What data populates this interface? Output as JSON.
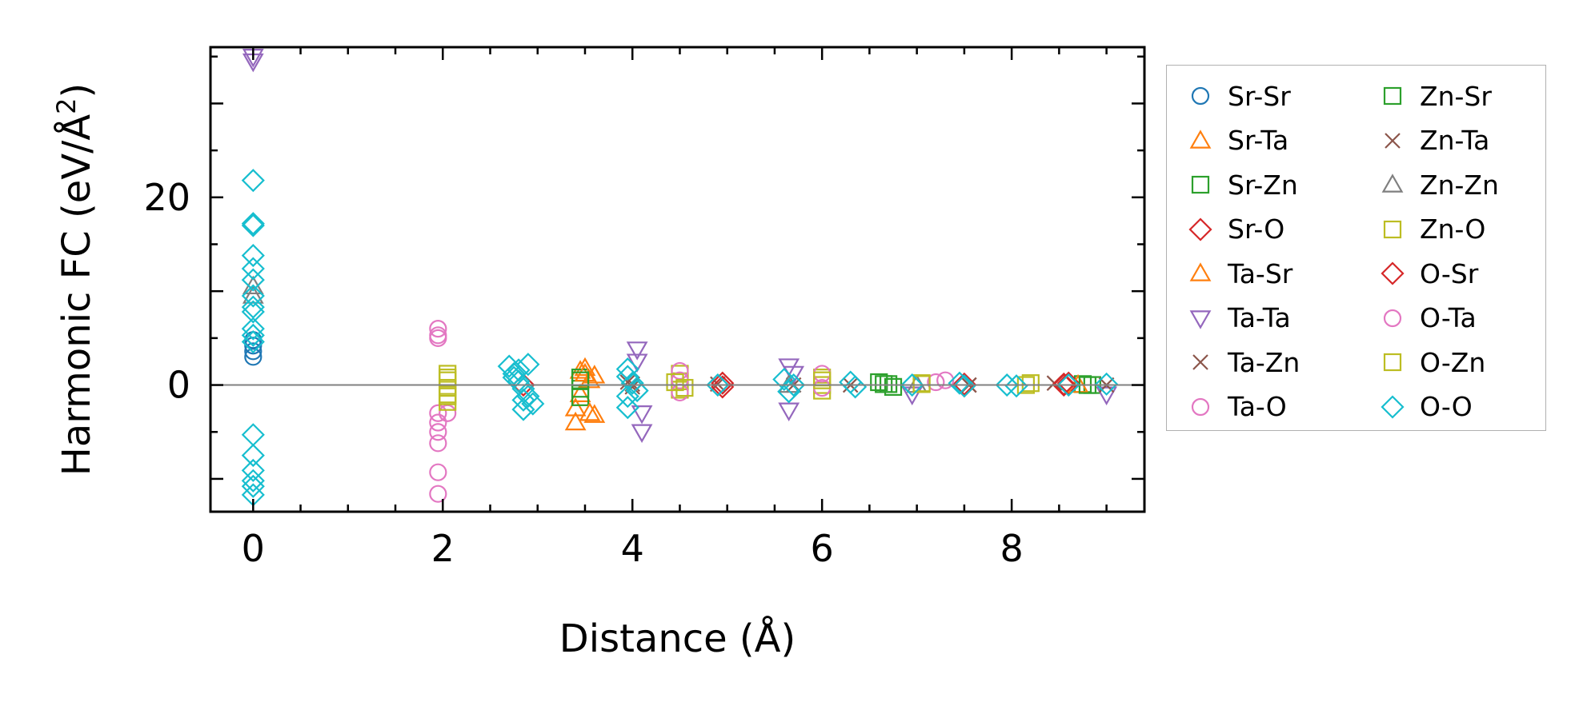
{
  "chart_data": {
    "type": "scatter",
    "title": "",
    "xlabel": "Distance (Å)",
    "ylabel_main": "Harmonic FC (eV/Å",
    "ylabel_sup": "2",
    "ylabel_close": ")",
    "xlim": [
      -0.45,
      9.4
    ],
    "ylim": [
      -13.5,
      36
    ],
    "xticks": [
      0,
      2,
      4,
      6,
      8
    ],
    "yticks": [
      0,
      20
    ],
    "grid": false,
    "legend_position": "outside-right",
    "reference_line_y": 0,
    "series": [
      {
        "name": "Sr-Sr",
        "marker": "circle",
        "color": "#1f77b4",
        "x": [
          0,
          0,
          0,
          0
        ],
        "y": [
          3,
          3.6,
          4.2,
          4.8
        ]
      },
      {
        "name": "Sr-Ta",
        "marker": "triangle-up",
        "color": "#ff7f0e",
        "x": [
          3.4,
          3.4,
          3.45,
          3.45,
          3.5,
          3.55
        ],
        "y": [
          -4,
          -2.5,
          1.5,
          -1,
          1.8,
          0.5
        ]
      },
      {
        "name": "Sr-Zn",
        "marker": "square",
        "color": "#2ca02c",
        "x": [
          3.45,
          3.45,
          3.45,
          6.6,
          6.7,
          8.75,
          8.85
        ],
        "y": [
          0.8,
          -0.4,
          -1.3,
          0.3,
          0.1,
          0.1,
          0
        ]
      },
      {
        "name": "Sr-O",
        "marker": "diamond",
        "color": "#d62728",
        "x": [
          2.85,
          4.95,
          7.5,
          8.55,
          8.6
        ],
        "y": [
          0,
          0.2,
          0.1,
          0,
          0.2
        ]
      },
      {
        "name": "Ta-Sr",
        "marker": "triangle-up",
        "color": "#ff7f0e",
        "x": [
          3.5,
          3.55,
          3.6,
          3.6,
          8.7
        ],
        "y": [
          1.2,
          -3,
          -3.2,
          1,
          0
        ]
      },
      {
        "name": "Ta-Ta",
        "marker": "triangle-down",
        "color": "#9467bd",
        "x": [
          0,
          0,
          4.05,
          4.05,
          4.1,
          4.1,
          5.65,
          5.65,
          5.7,
          6.95,
          9
        ],
        "y": [
          34.5,
          35,
          3.8,
          2.5,
          -5,
          -3,
          2,
          -2.7,
          1.2,
          -1,
          -1
        ]
      },
      {
        "name": "Ta-Zn",
        "marker": "x",
        "color": "#8c564b",
        "x": [
          3.95,
          4.0,
          4.9,
          6.3,
          7.55,
          8.45,
          9
        ],
        "y": [
          0.3,
          -0.2,
          0.1,
          0,
          0,
          0.2,
          0
        ]
      },
      {
        "name": "Ta-O",
        "marker": "circle",
        "color": "#e377c2",
        "x": [
          1.95,
          1.95,
          1.95,
          1.95,
          1.95,
          1.95,
          1.95,
          2.05,
          1.95,
          1.95
        ],
        "y": [
          5,
          6,
          5.3,
          -3,
          -4,
          -5,
          -6.2,
          -3,
          -9.3,
          -11.6
        ]
      },
      {
        "name": "Zn-Sr",
        "marker": "square",
        "color": "#2ca02c",
        "x": [
          3.45,
          6.65,
          6.75,
          8.8
        ],
        "y": [
          0.5,
          0.1,
          -0.2,
          0
        ]
      },
      {
        "name": "Zn-Ta",
        "marker": "x",
        "color": "#8c564b",
        "x": [
          4.0,
          5.7,
          7.55
        ],
        "y": [
          0.1,
          0,
          0
        ]
      },
      {
        "name": "Zn-Zn",
        "marker": "triangle-up",
        "color": "#7f7f7f",
        "x": [
          0,
          0,
          5.65,
          7.0
        ],
        "y": [
          9.5,
          10.5,
          0,
          0
        ]
      },
      {
        "name": "Zn-O",
        "marker": "square",
        "color": "#bcbd22",
        "x": [
          2.05,
          2.05,
          2.05,
          2.05,
          2.05,
          4.5,
          4.5,
          4.5,
          6.0,
          6.0,
          6.0,
          7.05,
          8.15
        ],
        "y": [
          1.2,
          0.5,
          -0.3,
          -1,
          -1.8,
          1.2,
          0.4,
          -0.5,
          0.8,
          0,
          -0.6,
          0.2,
          0
        ]
      },
      {
        "name": "O-Sr",
        "marker": "diamond",
        "color": "#d62728",
        "x": [
          4.95,
          7.5,
          8.55
        ],
        "y": [
          -0.2,
          -0.1,
          0.1
        ]
      },
      {
        "name": "O-Ta",
        "marker": "circle",
        "color": "#e377c2",
        "x": [
          4.5,
          4.5,
          4.5,
          6.0,
          6.0,
          7.2,
          7.3
        ],
        "y": [
          1.5,
          0.5,
          -0.8,
          1.2,
          -0.3,
          0.3,
          0.5
        ]
      },
      {
        "name": "O-Zn",
        "marker": "square",
        "color": "#bcbd22",
        "x": [
          2.05,
          2.05,
          4.45,
          4.55,
          6.0,
          7.05,
          8.2
        ],
        "y": [
          0.8,
          -1.2,
          0.3,
          -0.3,
          0.5,
          0.1,
          0.2
        ]
      },
      {
        "name": "O-O",
        "marker": "diamond",
        "color": "#17becf",
        "x": [
          0,
          0,
          0,
          0,
          0,
          0,
          0,
          0,
          0,
          0,
          0,
          0,
          0,
          0,
          0,
          0,
          0,
          0,
          2.7,
          2.75,
          2.8,
          2.85,
          2.9,
          2.95,
          2.75,
          2.85,
          2.9,
          2.8,
          2.85,
          3.95,
          3.95,
          3.95,
          3.95,
          4.0,
          4.05,
          4.9,
          5.6,
          5.65,
          5.7,
          6.3,
          6.35,
          6.95,
          7.45,
          7.5,
          7.95,
          8.05,
          8.6,
          9.0
        ],
        "y": [
          21.8,
          17,
          17.2,
          13.8,
          12.4,
          11.2,
          9.5,
          8.3,
          7.8,
          6,
          5.3,
          4.6,
          -5.3,
          -7.5,
          -9.1,
          -10.2,
          -10.8,
          -11.7,
          2,
          1.2,
          0.4,
          -0.4,
          -1.2,
          -2,
          0.8,
          -2.6,
          2.2,
          1.6,
          -1.6,
          1.7,
          0.9,
          -1.2,
          -2.4,
          0.2,
          -0.6,
          0,
          0.6,
          -0.7,
          0,
          0.3,
          -0.2,
          0,
          0.2,
          -0.1,
          0,
          -0.1,
          0,
          0.1
        ]
      }
    ]
  },
  "legend": {
    "col1": [
      {
        "label": "Sr-Sr",
        "marker": "circle",
        "color": "#1f77b4"
      },
      {
        "label": "Sr-Ta",
        "marker": "triangle-up",
        "color": "#ff7f0e"
      },
      {
        "label": "Sr-Zn",
        "marker": "square",
        "color": "#2ca02c"
      },
      {
        "label": "Sr-O",
        "marker": "diamond",
        "color": "#d62728"
      },
      {
        "label": "Ta-Sr",
        "marker": "triangle-up",
        "color": "#ff7f0e"
      },
      {
        "label": "Ta-Ta",
        "marker": "triangle-down",
        "color": "#9467bd"
      },
      {
        "label": "Ta-Zn",
        "marker": "x",
        "color": "#8c564b"
      },
      {
        "label": "Ta-O",
        "marker": "circle",
        "color": "#e377c2"
      }
    ],
    "col2": [
      {
        "label": "Zn-Sr",
        "marker": "square",
        "color": "#2ca02c"
      },
      {
        "label": "Zn-Ta",
        "marker": "x",
        "color": "#8c564b"
      },
      {
        "label": "Zn-Zn",
        "marker": "triangle-up",
        "color": "#7f7f7f"
      },
      {
        "label": "Zn-O",
        "marker": "square",
        "color": "#bcbd22"
      },
      {
        "label": "O-Sr",
        "marker": "diamond",
        "color": "#d62728"
      },
      {
        "label": "O-Ta",
        "marker": "circle",
        "color": "#e377c2"
      },
      {
        "label": "O-Zn",
        "marker": "square",
        "color": "#bcbd22"
      },
      {
        "label": "O-O",
        "marker": "diamond",
        "color": "#17becf"
      }
    ]
  }
}
